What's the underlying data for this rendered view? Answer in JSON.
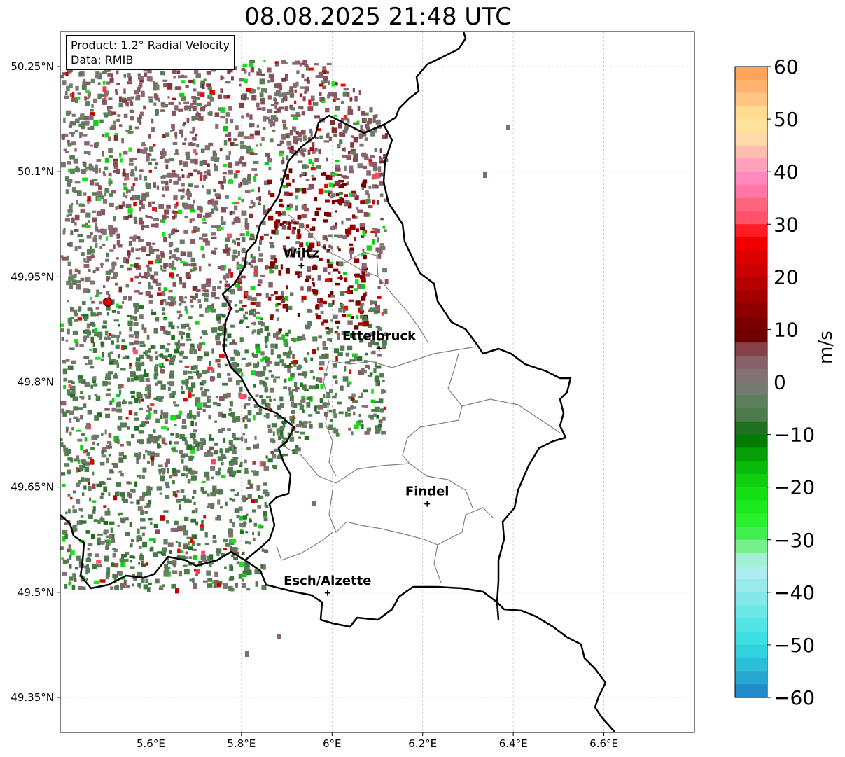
{
  "title": "08.08.2025 21:48 UTC",
  "info_box": {
    "product": "Product: 1.2° Radial Velocity",
    "data_source": "Data: RMIB"
  },
  "map": {
    "lon_range": [
      5.4,
      6.8
    ],
    "lat_range": [
      49.3,
      50.3
    ],
    "lon_ticks": [
      5.6,
      5.8,
      6.0,
      6.2,
      6.4,
      6.6
    ],
    "lon_tick_labels": [
      "5.6°E",
      "5.8°E",
      "6°E",
      "6.2°E",
      "6.4°E",
      "6.6°E"
    ],
    "lat_ticks": [
      50.25,
      50.1,
      49.95,
      49.8,
      49.65,
      49.5,
      49.35
    ],
    "lat_tick_labels": [
      "50.25°N",
      "50.1°N",
      "49.95°N",
      "49.8°N",
      "49.65°N",
      "49.5°N",
      "49.35°N"
    ],
    "gridlines": true,
    "radar_site": {
      "lon": 5.505,
      "lat": 49.914
    },
    "cities": [
      {
        "name": "Wiltz",
        "lon": 5.932,
        "lat": 49.966
      },
      {
        "name": "Ettelbruck",
        "lon": 6.104,
        "lat": 49.848
      },
      {
        "name": "Findel",
        "lon": 6.21,
        "lat": 49.626
      },
      {
        "name": "Esch/Alzette",
        "lon": 5.99,
        "lat": 49.499
      }
    ]
  },
  "colorbar": {
    "label": "m/s",
    "min": -60,
    "max": 60,
    "ticks": [
      60,
      50,
      40,
      30,
      20,
      10,
      0,
      -10,
      -20,
      -30,
      -40,
      -50,
      -60
    ],
    "tick_labels": [
      "60",
      "50",
      "40",
      "30",
      "20",
      "10",
      "0",
      "−10",
      "−20",
      "−30",
      "−40",
      "−50",
      "−60"
    ],
    "color_stops": [
      [
        -60,
        "#1f7ec4"
      ],
      [
        -55,
        "#28b4d6"
      ],
      [
        -50,
        "#32dce0"
      ],
      [
        -45,
        "#5ee6e6"
      ],
      [
        -40,
        "#8fe8ea"
      ],
      [
        -35,
        "#b6eef0"
      ],
      [
        -32,
        "#8ef0a8"
      ],
      [
        -30,
        "#4cf060"
      ],
      [
        -25,
        "#1ef020"
      ],
      [
        -20,
        "#10d810"
      ],
      [
        -15,
        "#08b008"
      ],
      [
        -10,
        "#006a00"
      ],
      [
        -7,
        "#4a7a4a"
      ],
      [
        -3,
        "#608060"
      ],
      [
        0,
        "#807878"
      ],
      [
        3,
        "#886870"
      ],
      [
        6,
        "#8a4a52"
      ],
      [
        8,
        "#6a0000"
      ],
      [
        12,
        "#800000"
      ],
      [
        16,
        "#a00000"
      ],
      [
        20,
        "#c00000"
      ],
      [
        24,
        "#e00000"
      ],
      [
        28,
        "#ff0000"
      ],
      [
        30,
        "#ff4a60"
      ],
      [
        34,
        "#ff6680"
      ],
      [
        38,
        "#ff80c0"
      ],
      [
        42,
        "#ffa8b8"
      ],
      [
        46,
        "#ffd8a8"
      ],
      [
        50,
        "#ffe898"
      ],
      [
        54,
        "#ffc080"
      ],
      [
        60,
        "#ff9a50"
      ]
    ]
  }
}
